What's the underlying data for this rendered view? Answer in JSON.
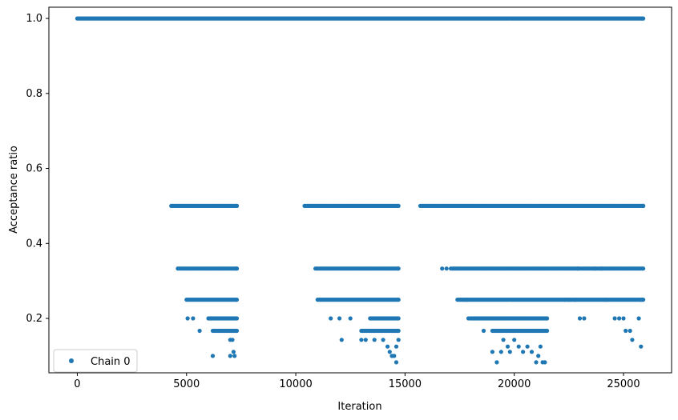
{
  "chart_data": {
    "type": "scatter",
    "title": "",
    "xlabel": "Iteration",
    "ylabel": "Acceptance ratio",
    "xlim": [
      -1300,
      27200
    ],
    "ylim": [
      0.055,
      1.03
    ],
    "xticks": [
      0,
      5000,
      10000,
      15000,
      20000,
      25000
    ],
    "xtick_labels": [
      "0",
      "5000",
      "10000",
      "15000",
      "20000",
      "25000"
    ],
    "yticks": [
      0.2,
      0.4,
      0.6,
      0.8,
      1.0
    ],
    "ytick_labels": [
      "0.2",
      "0.4",
      "0.6",
      "0.8",
      "1.0"
    ],
    "grid": false,
    "legend_position": "lower-left",
    "series": [
      {
        "name": "Chain 0",
        "color": "#1f77b4",
        "marker": "circle",
        "dense_runs": [
          {
            "y": 1.0,
            "x_start": 0,
            "x_end": 25900
          },
          {
            "y": 0.5,
            "x_start": 4300,
            "x_end": 7300
          },
          {
            "y": 0.5,
            "x_start": 10400,
            "x_end": 14700
          },
          {
            "y": 0.5,
            "x_start": 15700,
            "x_end": 25900
          },
          {
            "y": 0.333,
            "x_start": 4600,
            "x_end": 7300
          },
          {
            "y": 0.333,
            "x_start": 10900,
            "x_end": 14700
          },
          {
            "y": 0.333,
            "x_start": 17100,
            "x_end": 25900
          },
          {
            "y": 0.25,
            "x_start": 5000,
            "x_end": 7300
          },
          {
            "y": 0.25,
            "x_start": 11000,
            "x_end": 14700
          },
          {
            "y": 0.25,
            "x_start": 17400,
            "x_end": 25900
          },
          {
            "y": 0.2,
            "x_start": 6000,
            "x_end": 7300
          },
          {
            "y": 0.2,
            "x_start": 13400,
            "x_end": 14700
          },
          {
            "y": 0.2,
            "x_start": 18000,
            "x_end": 21500
          },
          {
            "y": 0.167,
            "x_start": 6200,
            "x_end": 7300
          },
          {
            "y": 0.167,
            "x_start": 13000,
            "x_end": 14700
          },
          {
            "y": 0.167,
            "x_start": 19000,
            "x_end": 21500
          }
        ],
        "points": [
          {
            "x": 5050,
            "y": 0.2
          },
          {
            "x": 5300,
            "y": 0.2
          },
          {
            "x": 5600,
            "y": 0.167
          },
          {
            "x": 6100,
            "y": 0.2
          },
          {
            "x": 6200,
            "y": 0.1
          },
          {
            "x": 7000,
            "y": 0.143
          },
          {
            "x": 7100,
            "y": 0.143
          },
          {
            "x": 7150,
            "y": 0.111
          },
          {
            "x": 7200,
            "y": 0.1
          },
          {
            "x": 7000,
            "y": 0.1
          },
          {
            "x": 12000,
            "y": 0.2
          },
          {
            "x": 12100,
            "y": 0.143
          },
          {
            "x": 11600,
            "y": 0.2
          },
          {
            "x": 12500,
            "y": 0.2
          },
          {
            "x": 13000,
            "y": 0.143
          },
          {
            "x": 13200,
            "y": 0.143
          },
          {
            "x": 13600,
            "y": 0.143
          },
          {
            "x": 14000,
            "y": 0.143
          },
          {
            "x": 14200,
            "y": 0.125
          },
          {
            "x": 14300,
            "y": 0.111
          },
          {
            "x": 14400,
            "y": 0.1
          },
          {
            "x": 14500,
            "y": 0.1
          },
          {
            "x": 14600,
            "y": 0.083
          },
          {
            "x": 14600,
            "y": 0.125
          },
          {
            "x": 14700,
            "y": 0.143
          },
          {
            "x": 16700,
            "y": 0.333
          },
          {
            "x": 16900,
            "y": 0.333
          },
          {
            "x": 18600,
            "y": 0.167
          },
          {
            "x": 19000,
            "y": 0.111
          },
          {
            "x": 19200,
            "y": 0.083
          },
          {
            "x": 19400,
            "y": 0.111
          },
          {
            "x": 19500,
            "y": 0.143
          },
          {
            "x": 19700,
            "y": 0.125
          },
          {
            "x": 19800,
            "y": 0.111
          },
          {
            "x": 20000,
            "y": 0.143
          },
          {
            "x": 20200,
            "y": 0.125
          },
          {
            "x": 20400,
            "y": 0.111
          },
          {
            "x": 20600,
            "y": 0.125
          },
          {
            "x": 20800,
            "y": 0.111
          },
          {
            "x": 21000,
            "y": 0.083
          },
          {
            "x": 21100,
            "y": 0.1
          },
          {
            "x": 21200,
            "y": 0.125
          },
          {
            "x": 21300,
            "y": 0.083
          },
          {
            "x": 21400,
            "y": 0.083
          },
          {
            "x": 22300,
            "y": 0.25
          },
          {
            "x": 22500,
            "y": 0.25
          },
          {
            "x": 22800,
            "y": 0.25
          },
          {
            "x": 22900,
            "y": 0.333
          },
          {
            "x": 23000,
            "y": 0.2
          },
          {
            "x": 23200,
            "y": 0.2
          },
          {
            "x": 23700,
            "y": 0.333
          },
          {
            "x": 24200,
            "y": 0.25
          },
          {
            "x": 24600,
            "y": 0.2
          },
          {
            "x": 24800,
            "y": 0.2
          },
          {
            "x": 25000,
            "y": 0.2
          },
          {
            "x": 25100,
            "y": 0.167
          },
          {
            "x": 25300,
            "y": 0.167
          },
          {
            "x": 25400,
            "y": 0.143
          },
          {
            "x": 25800,
            "y": 0.125
          },
          {
            "x": 25700,
            "y": 0.2
          },
          {
            "x": 25800,
            "y": 0.25
          },
          {
            "x": 24000,
            "y": 0.333
          },
          {
            "x": 17800,
            "y": 0.25
          },
          {
            "x": 17900,
            "y": 0.2
          }
        ]
      }
    ]
  }
}
